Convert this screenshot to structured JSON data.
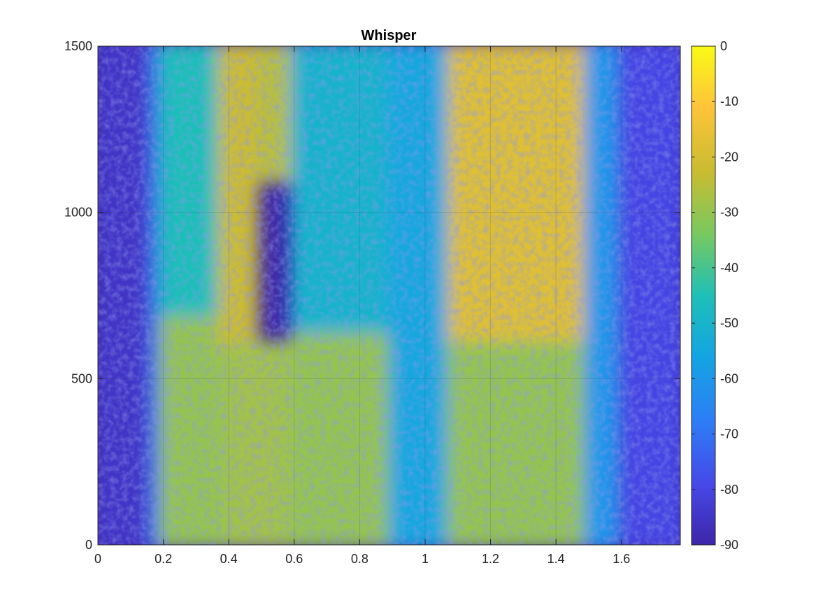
{
  "chart_data": {
    "type": "heatmap",
    "title": "Whisper",
    "xlabel": "",
    "ylabel": "",
    "xlim": [
      0,
      1.78
    ],
    "ylim": [
      0,
      1500
    ],
    "x_ticks": [
      0,
      0.2,
      0.4,
      0.6,
      0.8,
      1,
      1.2,
      1.4,
      1.6
    ],
    "x_tick_labels": [
      "0",
      "0.2",
      "0.4",
      "0.6",
      "0.8",
      "1",
      "1.2",
      "1.4",
      "1.6"
    ],
    "y_ticks": [
      0,
      500,
      1000,
      1500
    ],
    "y_tick_labels": [
      "0",
      "500",
      "1000",
      "1500"
    ],
    "grid": true,
    "colormap": "parula",
    "colorbar": {
      "range": [
        -90,
        0
      ],
      "ticks": [
        0,
        -10,
        -20,
        -30,
        -40,
        -50,
        -60,
        -70,
        -80,
        -90
      ],
      "tick_labels": [
        "0",
        "-10",
        "-20",
        "-30",
        "-40",
        "-50",
        "-60",
        "-70",
        "-80",
        "-90"
      ],
      "position": "right"
    },
    "regions": [
      {
        "x_range": [
          0.0,
          0.17
        ],
        "y_range": [
          0,
          1500
        ],
        "level_db": -85
      },
      {
        "x_range": [
          0.17,
          0.2
        ],
        "y_range": [
          0,
          1500
        ],
        "level_db": -70
      },
      {
        "x_range": [
          0.2,
          0.4
        ],
        "y_range": [
          0,
          700
        ],
        "level_db": -30
      },
      {
        "x_range": [
          0.2,
          0.4
        ],
        "y_range": [
          700,
          1500
        ],
        "level_db": -45
      },
      {
        "x_range": [
          0.38,
          0.48
        ],
        "y_range": [
          600,
          1500
        ],
        "level_db": -22
      },
      {
        "x_range": [
          0.5,
          0.6
        ],
        "y_range": [
          1100,
          1500
        ],
        "level_db": -25
      },
      {
        "x_range": [
          0.4,
          0.6
        ],
        "y_range": [
          0,
          600
        ],
        "level_db": -28
      },
      {
        "x_range": [
          0.6,
          0.9
        ],
        "y_range": [
          0,
          650
        ],
        "level_db": -30
      },
      {
        "x_range": [
          0.6,
          0.9
        ],
        "y_range": [
          650,
          1500
        ],
        "level_db": -50
      },
      {
        "x_range": [
          0.9,
          1.08
        ],
        "y_range": [
          0,
          1500
        ],
        "level_db": -55
      },
      {
        "x_range": [
          1.08,
          1.5
        ],
        "y_range": [
          600,
          1500
        ],
        "level_db": -18
      },
      {
        "x_range": [
          1.08,
          1.5
        ],
        "y_range": [
          0,
          600
        ],
        "level_db": -30
      },
      {
        "x_range": [
          1.5,
          1.6
        ],
        "y_range": [
          0,
          1500
        ],
        "level_db": -60
      },
      {
        "x_range": [
          1.6,
          1.78
        ],
        "y_range": [
          0,
          1500
        ],
        "level_db": -80
      }
    ]
  }
}
